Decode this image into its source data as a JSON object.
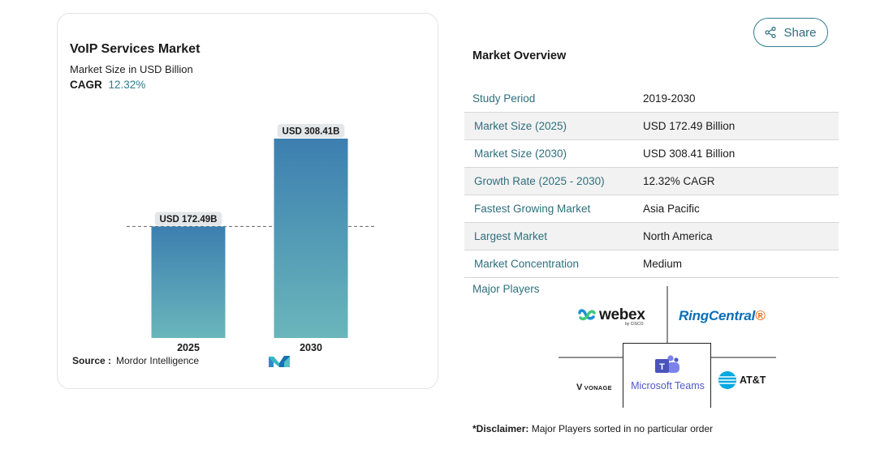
{
  "chart_data": {
    "type": "bar",
    "title": "VoIP Services Market",
    "subtitle": "Market Size in USD Billion",
    "cagr_label": "CAGR",
    "cagr_value": "12.32%",
    "categories": [
      "2025",
      "2030"
    ],
    "values": [
      172.49,
      308.41
    ],
    "data_labels": [
      "USD 172.49B",
      "USD 308.41B"
    ],
    "ylim": [
      0,
      308.41
    ],
    "grid": false,
    "reference_line": "dashed, at 2025 value",
    "bar_gradient": [
      "#3c7fb0",
      "#6ab6bb"
    ],
    "label_bg": "#e3e7ea"
  },
  "source": {
    "label": "Source :",
    "value": "Mordor Intelligence"
  },
  "share_button": {
    "label": "Share",
    "icon": "share-icon"
  },
  "overview": {
    "title": "Market Overview",
    "rows": [
      {
        "label": "Study Period",
        "value": "2019-2030",
        "shaded": false
      },
      {
        "label": "Market Size (2025)",
        "value": "USD 172.49 Billion",
        "shaded": true
      },
      {
        "label": "Market Size (2030)",
        "value": "USD 308.41 Billion",
        "shaded": false
      },
      {
        "label": "Growth Rate (2025 - 2030)",
        "value": "12.32% CAGR",
        "shaded": true
      },
      {
        "label": "Fastest Growing Market",
        "value": "Asia Pacific",
        "shaded": false
      },
      {
        "label": "Largest Market",
        "value": "North America",
        "shaded": true
      },
      {
        "label": "Market Concentration",
        "value": "Medium",
        "shaded": false
      }
    ]
  },
  "major_players": {
    "label": "Major Players",
    "players": [
      {
        "name": "webex",
        "sub": "by CISCO"
      },
      {
        "name": "RingCentral",
        "suffix": "®"
      },
      {
        "name": "VONAGE"
      },
      {
        "name": "Microsoft Teams"
      },
      {
        "name": "AT&T"
      }
    ]
  },
  "disclaimer": {
    "bold": "*Disclaimer:",
    "text": " Major Players sorted in no particular order"
  },
  "colors": {
    "accent": "#2e7d8c",
    "border": "#e4e4e4",
    "row_shade": "#f2f2f2"
  }
}
